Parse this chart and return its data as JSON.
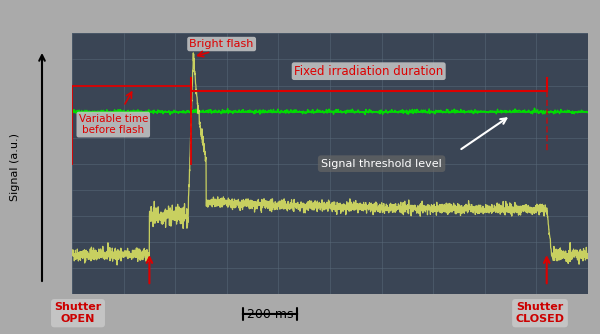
{
  "bg_color": "#3a4a5a",
  "grid_color": "#6a7a8a",
  "oscilloscope_bg": "#2a3a4a",
  "signal_color": "#c8d060",
  "green_line_color": "#00cc00",
  "red_annotation_color": "#cc0000",
  "white_arrow_color": "#ffffff",
  "label_bg": "#c8c8c8",
  "xlabel_scale": "200 ms",
  "ylabel": "Signal (a.u.)",
  "annotations": {
    "bright_flash": "Bright flash",
    "variable_time": "Variable time\nbefore flash",
    "fixed_irradiation": "Fixed irradiation duration",
    "signal_threshold": "Signal threshold level",
    "shutter_open": "Shutter\nOPEN",
    "shutter_closed": "Shutter\nCLOSED"
  },
  "xlim": [
    0,
    10
  ],
  "ylim": [
    0,
    10
  ],
  "shutter_open_x": 1.5,
  "flash_x": 2.3,
  "flash_peak_y": 9.2,
  "shutter_close_x": 9.2,
  "fixed_irrad_y": 7.8,
  "green_line_y": 7.0,
  "threshold_y": 5.5,
  "baseline_y": 1.5,
  "fluorescence_plateau_y": 3.2
}
